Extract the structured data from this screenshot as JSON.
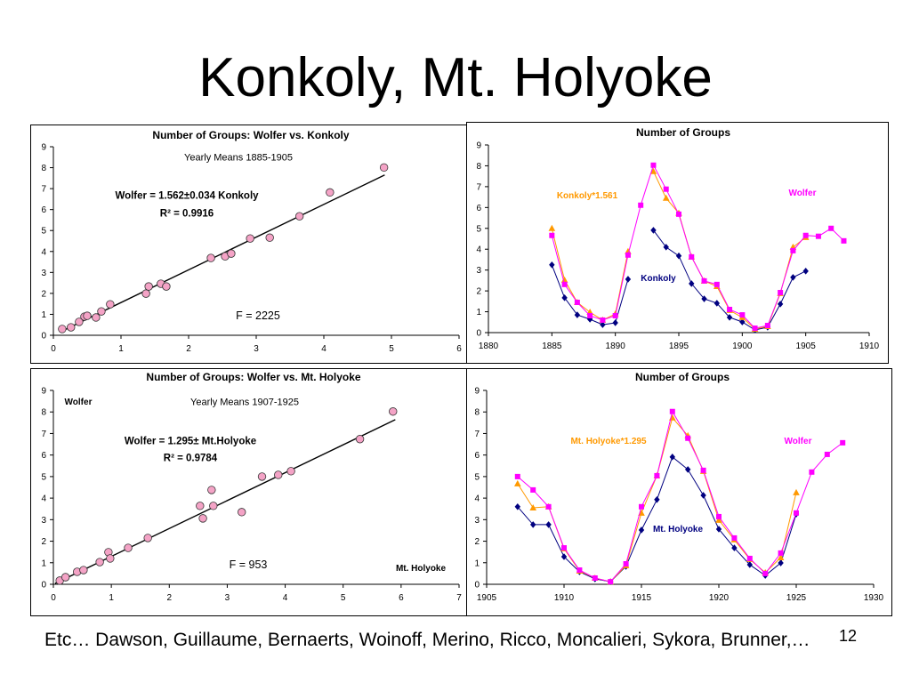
{
  "slide": {
    "title": "Konkoly, Mt. Holyoke",
    "footer": "Etc… Dawson, Guillaume, Bernaerts, Woinoff, Merino, Ricco, Moncalieri, Sykora, Brunner,…",
    "page_number": "12"
  },
  "colors": {
    "wolfer": "#ff00ff",
    "scaled_series": "#ff9900",
    "observer_series": "#000080",
    "scatter_marker": "#f4a3c6",
    "trendline": "#000000"
  },
  "chart_data": [
    {
      "type": "scatter",
      "title": "Number of Groups: Wolfer vs. Konkoly",
      "subtitle": "Yearly Means 1885-1905",
      "xlim": [
        0,
        6
      ],
      "ylim": [
        0,
        9
      ],
      "x_ticks": [
        0,
        1,
        2,
        3,
        4,
        5,
        6
      ],
      "y_ticks": [
        0,
        1,
        2,
        3,
        4,
        5,
        6,
        7,
        8,
        9
      ],
      "grid": false,
      "legend": "none",
      "marker_color": "#f4a3c6",
      "x": [
        0.13,
        0.26,
        0.38,
        0.46,
        0.5,
        0.63,
        0.71,
        0.84,
        1.37,
        1.41,
        1.59,
        1.67,
        2.33,
        2.54,
        2.63,
        2.91,
        3.2,
        3.64,
        4.09,
        4.89
      ],
      "y": [
        0.3,
        0.38,
        0.64,
        0.89,
        0.93,
        0.85,
        1.14,
        1.48,
        1.99,
        2.33,
        2.46,
        2.33,
        3.69,
        3.77,
        3.9,
        4.62,
        4.66,
        5.68,
        6.82,
        8.01
      ],
      "trendline": {
        "slope": 1.562,
        "x_range": [
          0.1,
          4.9
        ],
        "color": "#000000"
      },
      "annotations": {
        "equation": "Wolfer = 1.562±0.034 Konkoly",
        "r_squared": "R² = 0.9916",
        "f_stat": "F = 2225"
      }
    },
    {
      "type": "line",
      "title": "Number of Groups",
      "xlim": [
        1880,
        1910
      ],
      "ylim": [
        0,
        9
      ],
      "x_ticks": [
        1880,
        1885,
        1890,
        1895,
        1900,
        1905,
        1910
      ],
      "y_ticks": [
        0,
        1,
        2,
        3,
        4,
        5,
        6,
        7,
        8,
        9
      ],
      "grid": false,
      "legend": "none",
      "series": [
        {
          "name": "Wolfer",
          "color": "#ff00ff",
          "marker": "square",
          "x": [
            1885,
            1886,
            1887,
            1888,
            1889,
            1890,
            1891,
            1892,
            1893,
            1894,
            1895,
            1896,
            1897,
            1898,
            1899,
            1900,
            1901,
            1902,
            1903,
            1904,
            1905,
            1906,
            1907,
            1908
          ],
          "values": [
            4.66,
            2.31,
            1.45,
            0.81,
            0.6,
            0.81,
            3.72,
            6.11,
            8.03,
            6.88,
            5.68,
            3.63,
            2.48,
            2.31,
            1.11,
            0.85,
            0.21,
            0.34,
            1.92,
            3.93,
            4.66,
            4.62,
            5.0,
            4.4
          ]
        },
        {
          "name": "Konkoly*1.561",
          "color": "#ff9900",
          "marker": "triangle",
          "x": [
            1885,
            1886,
            1887,
            1888,
            1889,
            1890,
            1891,
            1892,
            1893,
            1894,
            1895,
            1896,
            1897,
            1898,
            1899,
            1900,
            1901,
            1902,
            1903,
            1904,
            1905
          ],
          "values": [
            5.0,
            2.52,
            1.45,
            0.98,
            0.6,
            0.9,
            3.89,
            null,
            7.73,
            6.45,
            5.73,
            3.63,
            2.48,
            2.22,
            1.07,
            0.73,
            0.17,
            0.3,
            1.88,
            4.1,
            4.57
          ]
        },
        {
          "name": "Konkoly",
          "color": "#000080",
          "marker": "diamond",
          "x": [
            1885,
            1886,
            1887,
            1888,
            1889,
            1890,
            1891,
            1892,
            1893,
            1894,
            1895,
            1896,
            1897,
            1898,
            1899,
            1900,
            1901,
            1902,
            1903,
            1904,
            1905
          ],
          "values": [
            3.25,
            1.67,
            0.85,
            0.64,
            0.38,
            0.47,
            2.56,
            null,
            4.91,
            4.1,
            3.68,
            2.35,
            1.62,
            1.41,
            0.73,
            0.51,
            0.13,
            0.26,
            1.37,
            2.65,
            2.95
          ]
        }
      ]
    },
    {
      "type": "scatter",
      "title": "Number of Groups: Wolfer vs. Mt. Holyoke",
      "subtitle": "Yearly Means 1907-1925",
      "ylabel": "Wolfer",
      "xlabel": "Mt. Holyoke",
      "xlim": [
        0,
        7
      ],
      "ylim": [
        0,
        9
      ],
      "x_ticks": [
        0,
        1,
        2,
        3,
        4,
        5,
        6,
        7
      ],
      "y_ticks": [
        0,
        1,
        2,
        3,
        4,
        5,
        6,
        7,
        8,
        9
      ],
      "grid": false,
      "legend": "none",
      "marker_color": "#f4a3c6",
      "x": [
        0.11,
        0.21,
        0.41,
        0.52,
        0.8,
        0.95,
        0.98,
        1.29,
        1.63,
        2.53,
        2.58,
        2.73,
        2.76,
        3.25,
        3.6,
        3.88,
        4.1,
        5.29,
        5.86
      ],
      "y": [
        0.17,
        0.33,
        0.58,
        0.66,
        1.03,
        1.49,
        1.2,
        1.69,
        2.15,
        3.64,
        3.06,
        4.38,
        3.64,
        3.35,
        5.0,
        5.08,
        5.25,
        6.74,
        8.02
      ],
      "trendline": {
        "slope": 1.295,
        "x_range": [
          0.03,
          5.9
        ],
        "color": "#000000"
      },
      "annotations": {
        "equation": "Wolfer = 1.295± Mt.Holyoke",
        "r_squared": "R² = 0.9784",
        "f_stat": "F = 953"
      }
    },
    {
      "type": "line",
      "title": "Number of Groups",
      "xlim": [
        1905,
        1930
      ],
      "ylim": [
        0,
        9
      ],
      "x_ticks": [
        1905,
        1910,
        1915,
        1920,
        1925,
        1930
      ],
      "y_ticks": [
        0,
        1,
        2,
        3,
        4,
        5,
        6,
        7,
        8,
        9
      ],
      "grid": false,
      "legend": "none",
      "series": [
        {
          "name": "Wolfer",
          "color": "#ff00ff",
          "marker": "square",
          "x": [
            1907,
            1908,
            1909,
            1910,
            1911,
            1912,
            1913,
            1914,
            1915,
            1916,
            1917,
            1918,
            1919,
            1920,
            1921,
            1922,
            1923,
            1924,
            1925,
            1926,
            1927,
            1928
          ],
          "values": [
            5.0,
            4.38,
            3.6,
            1.69,
            0.66,
            0.29,
            0.12,
            0.95,
            3.6,
            5.04,
            8.02,
            6.78,
            5.29,
            3.14,
            2.15,
            1.2,
            0.5,
            1.45,
            3.31,
            5.21,
            6.03,
            6.57
          ]
        },
        {
          "name": "Mt. Holyoke*1.295",
          "color": "#ff9900",
          "marker": "triangle",
          "x": [
            1907,
            1908,
            1909,
            1910,
            1911,
            1912,
            1913,
            1914,
            1915,
            1916,
            1917,
            1918,
            1919,
            1920,
            1921,
            1922,
            1923,
            1924,
            1925
          ],
          "values": [
            4.67,
            3.55,
            3.6,
            1.65,
            0.62,
            0.29,
            0.12,
            0.87,
            3.31,
            5.04,
            7.73,
            6.9,
            5.25,
            2.98,
            2.07,
            1.16,
            0.54,
            1.24,
            4.26
          ]
        },
        {
          "name": "Mt. Holyoke",
          "color": "#000080",
          "marker": "diamond",
          "x": [
            1907,
            1908,
            1909,
            1910,
            1911,
            1912,
            1913,
            1914,
            1915,
            1916,
            1917,
            1918,
            1919,
            1920,
            1921,
            1922,
            1923,
            1924,
            1925
          ],
          "values": [
            3.6,
            2.77,
            2.77,
            1.28,
            0.58,
            0.25,
            0.12,
            0.83,
            2.52,
            3.93,
            5.91,
            5.33,
            4.13,
            2.56,
            1.69,
            0.91,
            0.41,
            0.99,
            3.26
          ]
        }
      ]
    }
  ]
}
